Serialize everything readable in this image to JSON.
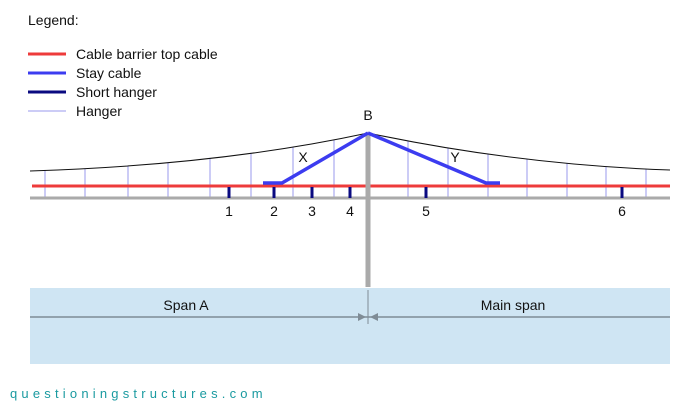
{
  "legend": {
    "title": "Legend:",
    "items": [
      {
        "label": "Cable barrier top cable",
        "color": "#ee3b3b"
      },
      {
        "label": "Stay cable",
        "color": "#3c3cf0"
      },
      {
        "label": "Short hanger",
        "color": "#0a0a80"
      },
      {
        "label": "Hanger",
        "color": "#9a9aee"
      }
    ]
  },
  "labels": {
    "tower": "B",
    "stay_left": "X",
    "stay_right": "Y"
  },
  "short_hangers": [
    "1",
    "2",
    "3",
    "4",
    "5",
    "6"
  ],
  "spans": {
    "left": "Span A",
    "right": "Main span"
  },
  "colors": {
    "deck": "#aaaaaa",
    "water": "#cfe5f3",
    "dimension": "#7f8c96"
  },
  "watermark": "questioningstructures.com"
}
